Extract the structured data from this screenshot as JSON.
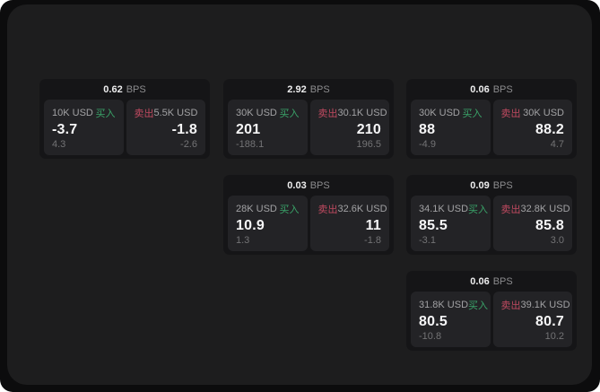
{
  "colors": {
    "buy": "#3aa469",
    "sell": "#c04a60",
    "panel_bg": "#1d1d1e",
    "card_bg": "#151517",
    "tile_bg": "#232326",
    "outer_bg": "#0c0c0d"
  },
  "labels": {
    "bps": "BPS",
    "buy": "买入",
    "sell": "卖出"
  },
  "cards": [
    {
      "bps": "0.62",
      "buy": {
        "amount": "10K USD",
        "price": "-3.7",
        "delta": "4.3"
      },
      "sell": {
        "amount": "5.5K USD",
        "price": "-1.8",
        "delta": "-2.6"
      }
    },
    {
      "bps": "2.92",
      "buy": {
        "amount": "30K USD",
        "price": "201",
        "delta": "-188.1"
      },
      "sell": {
        "amount": "30.1K USD",
        "price": "210",
        "delta": "196.5"
      }
    },
    {
      "bps": "0.06",
      "buy": {
        "amount": "30K USD",
        "price": "88",
        "delta": "-4.9"
      },
      "sell": {
        "amount": "30K USD",
        "price": "88.2",
        "delta": "4.7"
      }
    },
    {
      "bps": "0.03",
      "buy": {
        "amount": "28K USD",
        "price": "10.9",
        "delta": "1.3"
      },
      "sell": {
        "amount": "32.6K USD",
        "price": "11",
        "delta": "-1.8"
      }
    },
    {
      "bps": "0.09",
      "buy": {
        "amount": "34.1K USD",
        "price": "85.5",
        "delta": "-3.1"
      },
      "sell": {
        "amount": "32.8K USD",
        "price": "85.8",
        "delta": "3.0"
      }
    },
    {
      "bps": "0.06",
      "buy": {
        "amount": "31.8K USD",
        "price": "80.5",
        "delta": "-10.8"
      },
      "sell": {
        "amount": "39.1K USD",
        "price": "80.7",
        "delta": "10.2"
      }
    }
  ]
}
